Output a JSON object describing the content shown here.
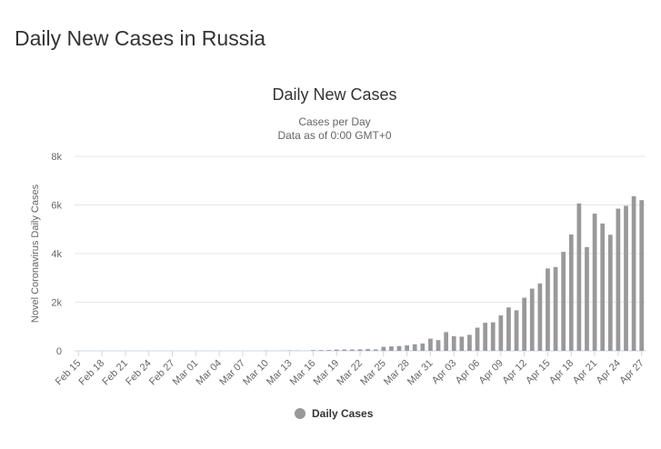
{
  "page": {
    "heading": "Daily New Cases in Russia"
  },
  "colors": {
    "bar": "#999999",
    "grid": "#e6e6e6",
    "text": "#333333",
    "axis_text": "#666666"
  },
  "chart_data": {
    "type": "bar",
    "title": "Daily New Cases",
    "subtitle_lines": [
      "Cases per Day",
      "Data as of 0:00 GMT+0"
    ],
    "ylabel": "Novel Coronavirus Daily Cases",
    "xlabel": "",
    "ylim": [
      0,
      8000
    ],
    "yticks": [
      0,
      2000,
      4000,
      6000,
      8000
    ],
    "ytick_labels": [
      "0",
      "2k",
      "4k",
      "6k",
      "8k"
    ],
    "grid": true,
    "legend": {
      "position": "bottom-center",
      "marker": "circle"
    },
    "categories": [
      "Feb 15",
      "Feb 16",
      "Feb 17",
      "Feb 18",
      "Feb 19",
      "Feb 20",
      "Feb 21",
      "Feb 22",
      "Feb 23",
      "Feb 24",
      "Feb 25",
      "Feb 26",
      "Feb 27",
      "Feb 28",
      "Feb 29",
      "Mar 01",
      "Mar 02",
      "Mar 03",
      "Mar 04",
      "Mar 05",
      "Mar 06",
      "Mar 07",
      "Mar 08",
      "Mar 09",
      "Mar 10",
      "Mar 11",
      "Mar 12",
      "Mar 13",
      "Mar 14",
      "Mar 15",
      "Mar 16",
      "Mar 17",
      "Mar 18",
      "Mar 19",
      "Mar 20",
      "Mar 21",
      "Mar 22",
      "Mar 23",
      "Mar 24",
      "Mar 25",
      "Mar 26",
      "Mar 27",
      "Mar 28",
      "Mar 29",
      "Mar 30",
      "Mar 31",
      "Apr 01",
      "Apr 02",
      "Apr 03",
      "Apr 04",
      "Apr 05",
      "Apr 06",
      "Apr 07",
      "Apr 08",
      "Apr 09",
      "Apr 10",
      "Apr 11",
      "Apr 12",
      "Apr 13",
      "Apr 14",
      "Apr 15",
      "Apr 16",
      "Apr 17",
      "Apr 18",
      "Apr 19",
      "Apr 20",
      "Apr 21",
      "Apr 22",
      "Apr 23",
      "Apr 24",
      "Apr 25",
      "Apr 26",
      "Apr 27"
    ],
    "xtick_labels": [
      "Feb 15",
      "Feb 18",
      "Feb 21",
      "Feb 24",
      "Feb 27",
      "Mar 01",
      "Mar 04",
      "Mar 07",
      "Mar 10",
      "Mar 13",
      "Mar 16",
      "Mar 19",
      "Mar 22",
      "Mar 25",
      "Mar 28",
      "Mar 31",
      "Apr 03",
      "Apr 06",
      "Apr 09",
      "Apr 12",
      "Apr 15",
      "Apr 18",
      "Apr 21",
      "Apr 24",
      "Apr 27"
    ],
    "series": [
      {
        "name": "Daily Cases",
        "values": [
          0,
          0,
          0,
          0,
          0,
          0,
          0,
          0,
          0,
          0,
          0,
          0,
          0,
          0,
          0,
          0,
          1,
          0,
          0,
          0,
          0,
          0,
          0,
          0,
          7,
          3,
          6,
          14,
          11,
          4,
          29,
          30,
          33,
          52,
          54,
          53,
          61,
          71,
          57,
          163,
          182,
          196,
          228,
          270,
          302,
          501,
          440,
          771,
          601,
          582,
          658,
          954,
          1154,
          1175,
          1459,
          1786,
          1667,
          2186,
          2558,
          2774,
          3388,
          3448,
          4070,
          4785,
          6060,
          4268,
          5642,
          5236,
          4774,
          5849,
          5966,
          6361,
          6198
        ]
      }
    ]
  }
}
